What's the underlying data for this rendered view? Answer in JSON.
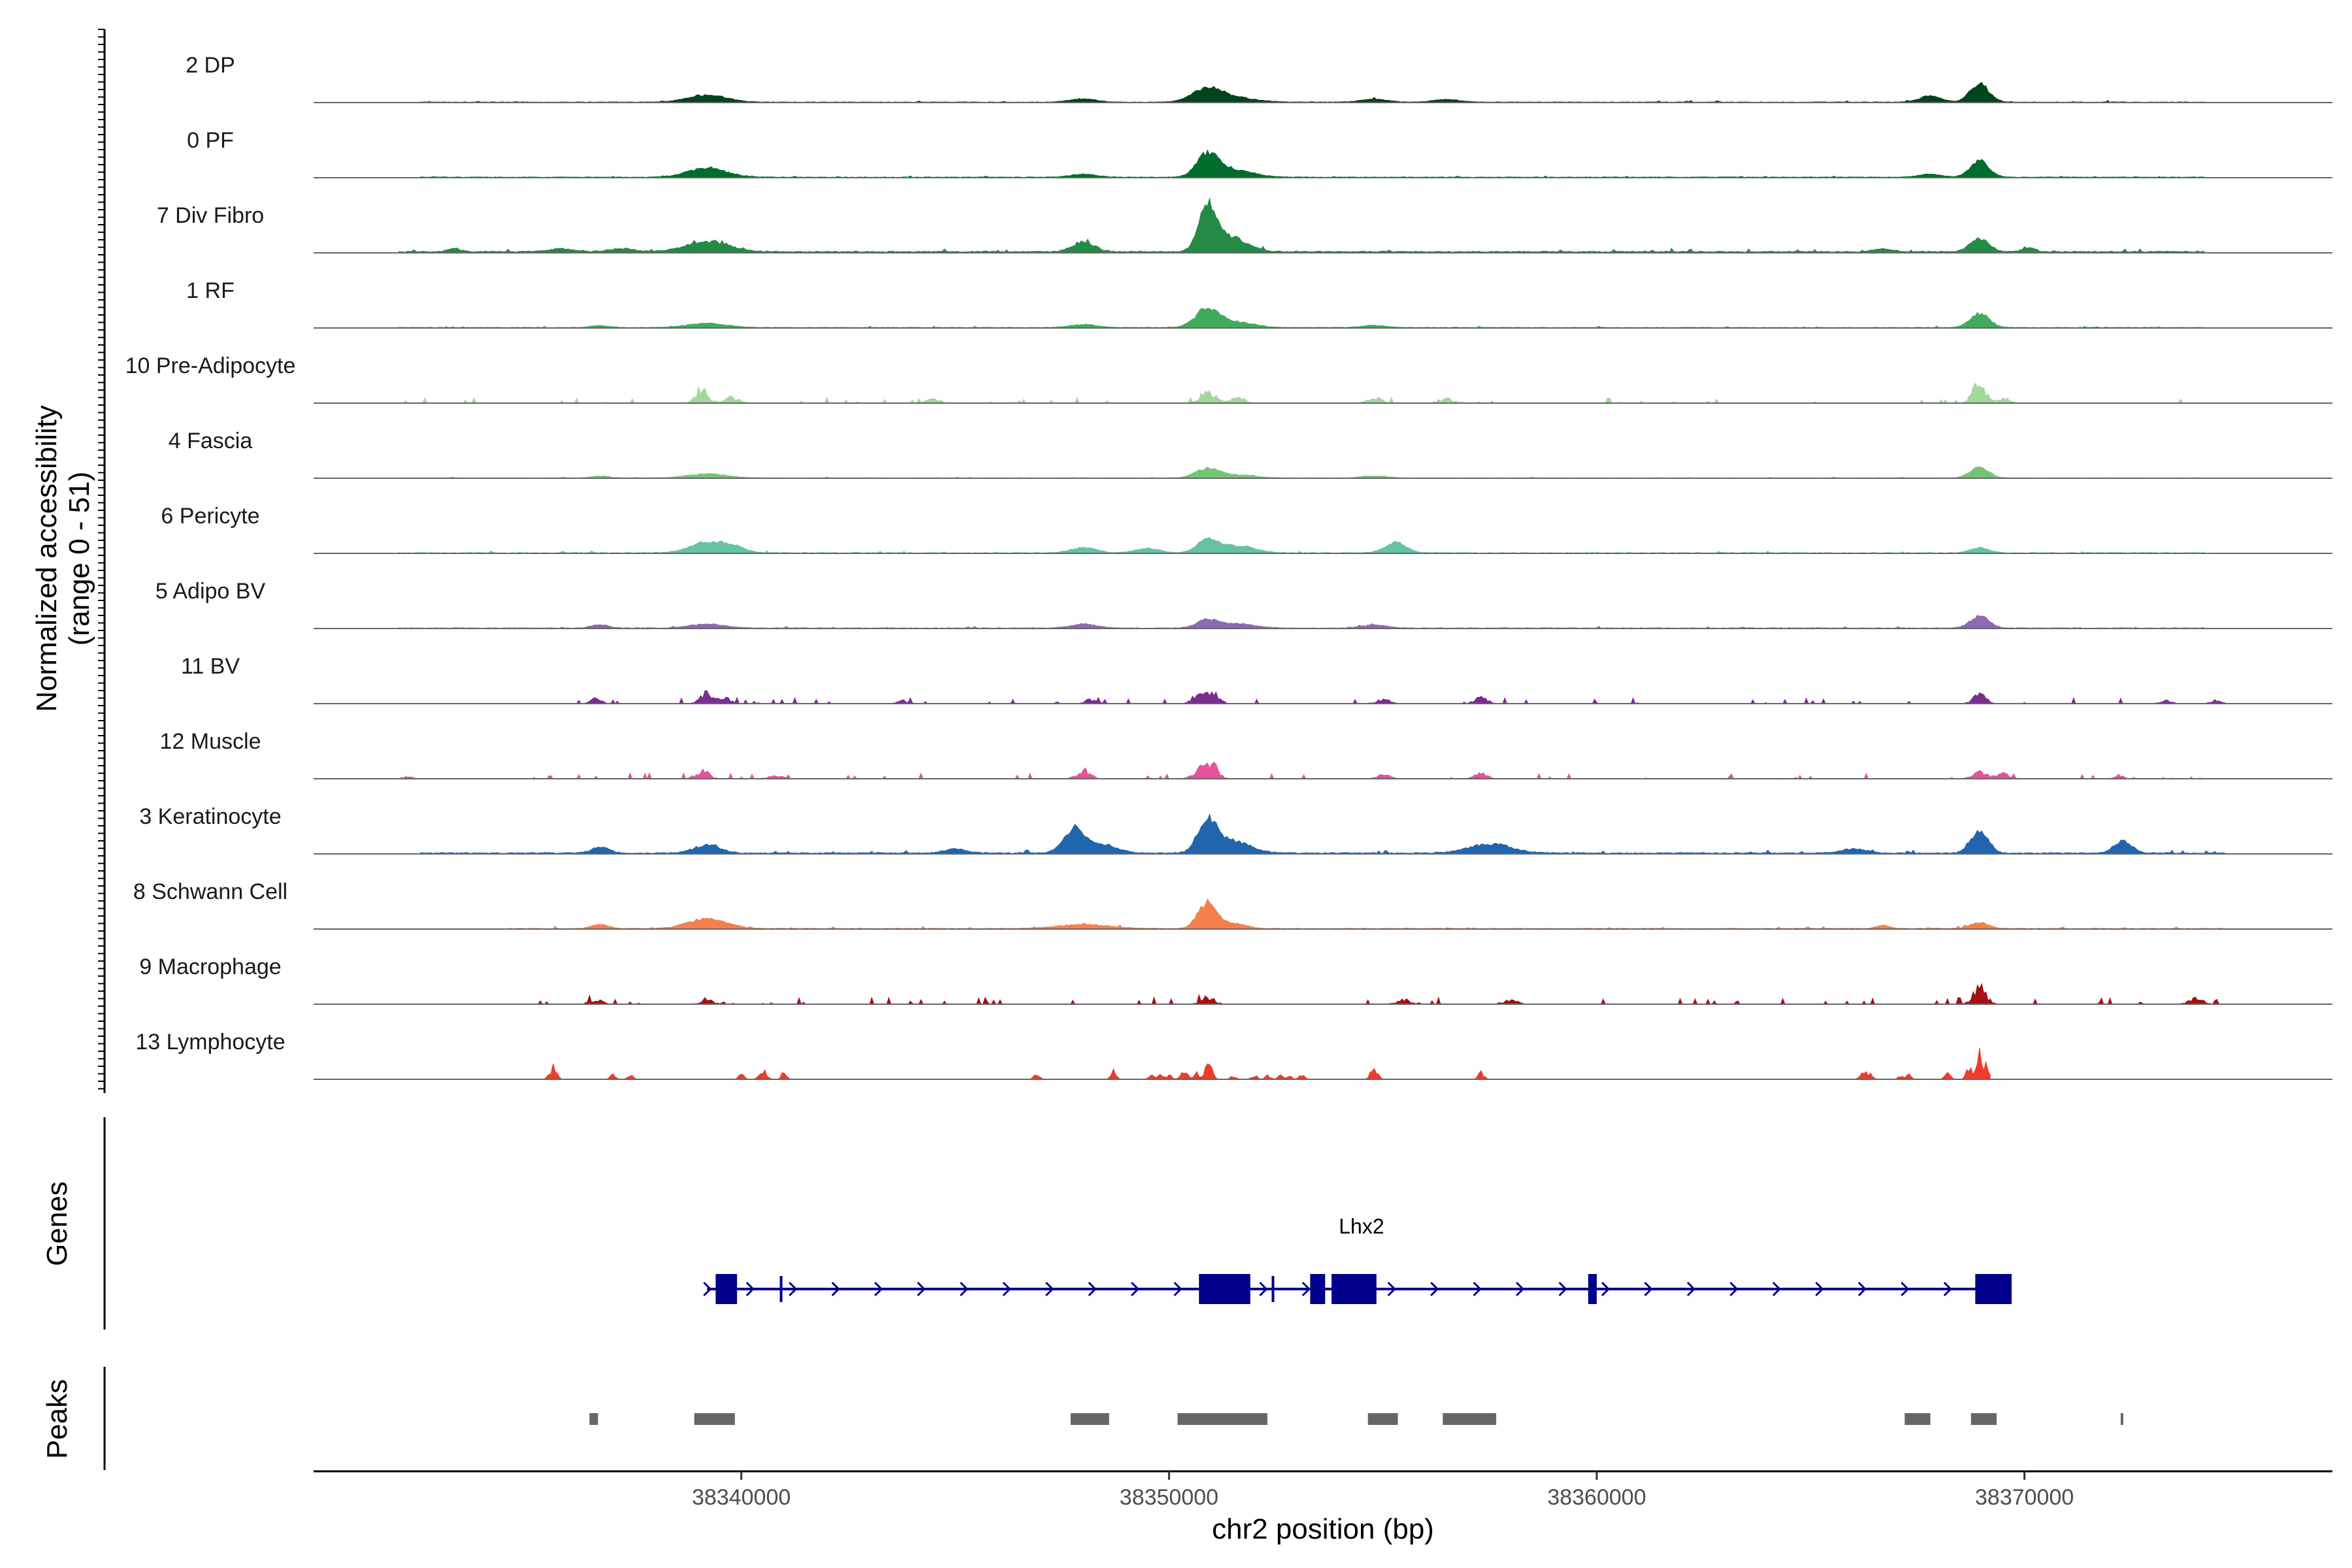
{
  "chart_data": {
    "type": "area",
    "title": "",
    "xlabel": "chr2 position (bp)",
    "ylabel": "Normalized accessibility",
    "ylabel_range": "(range 0 - 51)",
    "y_range_text": "range 0 - 51",
    "ylim": [
      0,
      51
    ],
    "xlim": [
      38330000,
      38377200
    ],
    "x_ticks": [
      38340000,
      38350000,
      38360000,
      38370000
    ],
    "x_tick_labels": [
      "38340000",
      "38350000",
      "38360000",
      "38370000"
    ],
    "peak_centers": [
      38339150,
      38348000,
      38350900,
      38354700,
      38355300,
      38357200,
      38366500,
      38367800,
      38368950,
      38372300
    ],
    "tracks": [
      {
        "name": "2 DP",
        "color": "#00441b",
        "baseline": 0.25,
        "noise": 0.4,
        "start": 38332500,
        "end": 38374200,
        "scattered": false,
        "peaks": [
          [
            38339200,
            450,
            7
          ],
          [
            38348000,
            300,
            3
          ],
          [
            38350900,
            350,
            13
          ],
          [
            38351600,
            450,
            4
          ],
          [
            38354800,
            300,
            3
          ],
          [
            38356500,
            300,
            2.5
          ],
          [
            38367800,
            250,
            6
          ],
          [
            38368950,
            220,
            18
          ]
        ]
      },
      {
        "name": "0 PF",
        "color": "#006d2c",
        "baseline": 0.3,
        "noise": 0.4,
        "start": 38332500,
        "end": 38374200,
        "scattered": false,
        "peaks": [
          [
            38339200,
            450,
            9
          ],
          [
            38348000,
            300,
            3
          ],
          [
            38350900,
            250,
            22
          ],
          [
            38351500,
            450,
            7
          ],
          [
            38367800,
            250,
            3
          ],
          [
            38368950,
            220,
            16
          ]
        ]
      },
      {
        "name": "7 Div Fibro",
        "color": "#238b45",
        "baseline": 0.6,
        "noise": 0.9,
        "start": 38332000,
        "end": 38374200,
        "scattered": false,
        "peaks": [
          [
            38333300,
            150,
            3
          ],
          [
            38335800,
            300,
            3
          ],
          [
            38337200,
            300,
            3
          ],
          [
            38339200,
            500,
            10
          ],
          [
            38348000,
            250,
            10
          ],
          [
            38350900,
            200,
            42
          ],
          [
            38351400,
            400,
            15
          ],
          [
            38366700,
            200,
            3
          ],
          [
            38368950,
            220,
            13
          ],
          [
            38370100,
            150,
            4
          ]
        ]
      },
      {
        "name": "1 RF",
        "color": "#41ab5d",
        "baseline": 0.25,
        "noise": 0.4,
        "start": 38332000,
        "end": 38374200,
        "scattered": false,
        "peaks": [
          [
            38336700,
            200,
            2
          ],
          [
            38339200,
            450,
            4
          ],
          [
            38348000,
            300,
            3
          ],
          [
            38350900,
            280,
            18
          ],
          [
            38351600,
            400,
            5
          ],
          [
            38354800,
            300,
            2
          ],
          [
            38368950,
            220,
            14
          ]
        ]
      },
      {
        "name": "10 Pre-Adipocyte",
        "color": "#a1d99b",
        "baseline": 0,
        "noise": 1.2,
        "start": 38332000,
        "end": 38374200,
        "scattered": true,
        "peaks": [
          [
            38339100,
            150,
            14
          ],
          [
            38339800,
            150,
            7
          ],
          [
            38344500,
            150,
            5
          ],
          [
            38350900,
            200,
            12
          ],
          [
            38351600,
            150,
            8
          ],
          [
            38354800,
            150,
            7
          ],
          [
            38356500,
            150,
            5
          ],
          [
            38368950,
            150,
            24
          ],
          [
            38369500,
            150,
            7
          ]
        ]
      },
      {
        "name": "4 Fascia",
        "color": "#74c476",
        "baseline": 0.15,
        "noise": 0.3,
        "start": 38332000,
        "end": 38374200,
        "scattered": false,
        "peaks": [
          [
            38336700,
            200,
            2
          ],
          [
            38339200,
            450,
            4
          ],
          [
            38350900,
            280,
            9
          ],
          [
            38351600,
            400,
            3
          ],
          [
            38354800,
            300,
            2
          ],
          [
            38368950,
            220,
            10
          ]
        ]
      },
      {
        "name": "6 Pericyte",
        "color": "#66c2a4",
        "baseline": 0.2,
        "noise": 0.6,
        "start": 38332000,
        "end": 38374200,
        "scattered": false,
        "peaks": [
          [
            38339200,
            400,
            10
          ],
          [
            38339800,
            300,
            5
          ],
          [
            38348000,
            300,
            5
          ],
          [
            38349500,
            300,
            4
          ],
          [
            38350900,
            250,
            12
          ],
          [
            38351600,
            400,
            7
          ],
          [
            38355300,
            250,
            10
          ],
          [
            38368950,
            220,
            5
          ]
        ]
      },
      {
        "name": "5 Adipo BV",
        "color": "#8c6bb1",
        "baseline": 0.2,
        "noise": 0.5,
        "start": 38332000,
        "end": 38374200,
        "scattered": false,
        "peaks": [
          [
            38336700,
            200,
            3
          ],
          [
            38339200,
            400,
            4
          ],
          [
            38348000,
            300,
            4
          ],
          [
            38350900,
            250,
            8
          ],
          [
            38351600,
            400,
            4
          ],
          [
            38354800,
            300,
            3
          ],
          [
            38368950,
            220,
            12
          ]
        ]
      },
      {
        "name": "11 BV",
        "color": "#7a2e8e",
        "baseline": 0,
        "noise": 1.3,
        "start": 38336000,
        "end": 38374700,
        "scattered": true,
        "peaks": [
          [
            38336600,
            120,
            6
          ],
          [
            38339200,
            150,
            12
          ],
          [
            38339600,
            150,
            7
          ],
          [
            38343800,
            120,
            4
          ],
          [
            38348200,
            150,
            5
          ],
          [
            38350700,
            150,
            9
          ],
          [
            38351000,
            150,
            14
          ],
          [
            38355000,
            150,
            5
          ],
          [
            38357300,
            150,
            8
          ],
          [
            38368950,
            150,
            10
          ],
          [
            38373300,
            120,
            4
          ],
          [
            38374500,
            120,
            4
          ]
        ]
      },
      {
        "name": "12 Muscle",
        "color": "#e7529a",
        "baseline": 0,
        "noise": 1.3,
        "start": 38332000,
        "end": 38374200,
        "scattered": true,
        "peaks": [
          [
            38332200,
            100,
            3
          ],
          [
            38339100,
            150,
            9
          ],
          [
            38340800,
            150,
            5
          ],
          [
            38348000,
            150,
            11
          ],
          [
            38350700,
            150,
            10
          ],
          [
            38351000,
            150,
            16
          ],
          [
            38355000,
            150,
            5
          ],
          [
            38357300,
            150,
            6
          ],
          [
            38368950,
            150,
            9
          ],
          [
            38369500,
            150,
            6
          ],
          [
            38372200,
            100,
            4
          ]
        ]
      },
      {
        "name": "3 Keratinocyte",
        "color": "#2166ac",
        "baseline": 0.4,
        "noise": 0.8,
        "start": 38332500,
        "end": 38374700,
        "scattered": false,
        "peaks": [
          [
            38336700,
            200,
            6
          ],
          [
            38339200,
            300,
            8
          ],
          [
            38345000,
            250,
            4
          ],
          [
            38347800,
            250,
            25
          ],
          [
            38348500,
            300,
            8
          ],
          [
            38350900,
            220,
            30
          ],
          [
            38351500,
            400,
            12
          ],
          [
            38357500,
            500,
            9
          ],
          [
            38366000,
            300,
            4
          ],
          [
            38368950,
            200,
            22
          ],
          [
            38372300,
            200,
            12
          ]
        ]
      },
      {
        "name": "8 Schwann Cell",
        "color": "#f4814d",
        "baseline": 0.15,
        "noise": 0.6,
        "start": 38334500,
        "end": 38374700,
        "scattered": false,
        "peaks": [
          [
            38336700,
            200,
            4
          ],
          [
            38339200,
            450,
            10
          ],
          [
            38348000,
            600,
            4
          ],
          [
            38350900,
            220,
            26
          ],
          [
            38351500,
            300,
            5
          ],
          [
            38366700,
            150,
            3
          ],
          [
            38368950,
            220,
            6
          ]
        ]
      },
      {
        "name": "9 Macrophage",
        "color": "#a50f15",
        "baseline": 0,
        "noise": 1.5,
        "start": 38334300,
        "end": 38374700,
        "scattered": true,
        "peaks": [
          [
            38336600,
            150,
            5
          ],
          [
            38339200,
            150,
            5
          ],
          [
            38350900,
            150,
            8
          ],
          [
            38355500,
            150,
            5
          ],
          [
            38358000,
            150,
            5
          ],
          [
            38368950,
            150,
            20
          ],
          [
            38374000,
            150,
            6
          ]
        ]
      },
      {
        "name": "13 Lymphocyte",
        "color": "#ef3b2c",
        "baseline": 0,
        "noise": 0,
        "start": 38335300,
        "end": 38369200,
        "scattered": true,
        "peaks": [
          [
            38335600,
            80,
            14
          ],
          [
            38337000,
            60,
            5
          ],
          [
            38337400,
            60,
            5
          ],
          [
            38340000,
            60,
            6
          ],
          [
            38340500,
            80,
            14
          ],
          [
            38341000,
            60,
            9
          ],
          [
            38346900,
            60,
            7
          ],
          [
            38348700,
            60,
            10
          ],
          [
            38349600,
            60,
            5
          ],
          [
            38349800,
            60,
            5
          ],
          [
            38350000,
            60,
            5
          ],
          [
            38350300,
            60,
            5
          ],
          [
            38350400,
            60,
            12
          ],
          [
            38350650,
            60,
            8
          ],
          [
            38350900,
            60,
            15
          ],
          [
            38351000,
            60,
            8
          ],
          [
            38351500,
            60,
            5
          ],
          [
            38352000,
            60,
            5
          ],
          [
            38352300,
            60,
            5
          ],
          [
            38352600,
            60,
            5
          ],
          [
            38352800,
            60,
            5
          ],
          [
            38353100,
            60,
            5
          ],
          [
            38354800,
            80,
            14
          ],
          [
            38357300,
            60,
            9
          ],
          [
            38366200,
            60,
            5
          ],
          [
            38366300,
            60,
            5
          ],
          [
            38366400,
            60,
            5
          ],
          [
            38367100,
            60,
            4
          ],
          [
            38367300,
            60,
            5
          ],
          [
            38368200,
            60,
            8
          ],
          [
            38368700,
            60,
            14
          ],
          [
            38368950,
            60,
            36
          ],
          [
            38369100,
            60,
            15
          ]
        ]
      }
    ],
    "genes_track": {
      "label": "Genes",
      "gene_name": "Lhx2",
      "gene_start": 38339200,
      "gene_end": 38369700,
      "strand": "+",
      "color": "#00008b",
      "exons": [
        [
          38339400,
          38339900
        ],
        [
          38340900,
          38340950
        ],
        [
          38350700,
          38351900
        ],
        [
          38352400,
          38352450
        ],
        [
          38353300,
          38353650
        ],
        [
          38353800,
          38354850
        ],
        [
          38359800,
          38360000
        ],
        [
          38368850,
          38369700
        ]
      ]
    },
    "peaks_track": {
      "label": "Peaks",
      "color": "#666666",
      "regions": [
        [
          38336450,
          38336650
        ],
        [
          38338900,
          38339850
        ],
        [
          38347700,
          38348600
        ],
        [
          38350200,
          38352300
        ],
        [
          38354650,
          38355350
        ],
        [
          38356400,
          38357650
        ],
        [
          38367200,
          38367800
        ],
        [
          38368750,
          38369350
        ],
        [
          38372250,
          38372300
        ]
      ]
    }
  }
}
